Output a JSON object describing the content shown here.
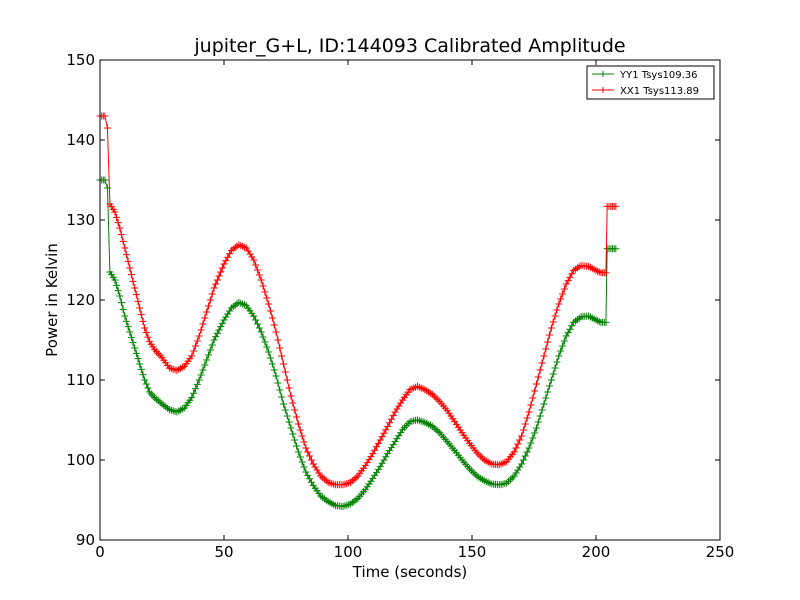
{
  "chart_data": {
    "type": "line",
    "title": "jupiter_G+L, ID:144093 Calibrated Amplitude",
    "xlabel": "Time (seconds)",
    "ylabel": "Power in Kelvin",
    "xlim": [
      0,
      250
    ],
    "ylim": [
      90,
      150
    ],
    "xticks": [
      "0",
      "50",
      "100",
      "150",
      "200",
      "250"
    ],
    "yticks": [
      "90",
      "100",
      "110",
      "120",
      "130",
      "140",
      "150"
    ],
    "grid": false,
    "legend_position": "top-right",
    "marker": "+",
    "series": [
      {
        "name": "YY1 Tsys109.36",
        "color": "#008000",
        "points": [
          [
            0,
            135
          ],
          [
            2,
            135
          ],
          [
            3,
            134
          ],
          [
            4,
            123.5
          ],
          [
            6,
            122.5
          ],
          [
            8,
            120.5
          ],
          [
            10,
            118
          ],
          [
            12,
            116
          ],
          [
            14,
            114
          ],
          [
            16,
            112
          ],
          [
            18,
            110
          ],
          [
            20,
            108.5
          ],
          [
            22,
            107.8
          ],
          [
            25,
            107
          ],
          [
            28,
            106.3
          ],
          [
            31,
            106
          ],
          [
            34,
            106.5
          ],
          [
            37,
            107.8
          ],
          [
            40,
            110
          ],
          [
            43,
            112.5
          ],
          [
            46,
            115
          ],
          [
            50,
            117.5
          ],
          [
            53,
            119
          ],
          [
            56,
            119.7
          ],
          [
            59,
            119.3
          ],
          [
            62,
            118
          ],
          [
            65,
            116
          ],
          [
            68,
            113.5
          ],
          [
            71,
            110.5
          ],
          [
            74,
            107
          ],
          [
            77,
            104
          ],
          [
            80,
            101
          ],
          [
            83,
            98.5
          ],
          [
            86,
            96.8
          ],
          [
            89,
            95.5
          ],
          [
            92,
            94.8
          ],
          [
            95,
            94.3
          ],
          [
            98,
            94.2
          ],
          [
            101,
            94.5
          ],
          [
            104,
            95.2
          ],
          [
            107,
            96.3
          ],
          [
            110,
            97.7
          ],
          [
            113,
            99.2
          ],
          [
            116,
            100.8
          ],
          [
            119,
            102.3
          ],
          [
            122,
            103.8
          ],
          [
            125,
            104.8
          ],
          [
            128,
            105
          ],
          [
            131,
            104.7
          ],
          [
            134,
            104.2
          ],
          [
            137,
            103.4
          ],
          [
            140,
            102.3
          ],
          [
            143,
            101.2
          ],
          [
            146,
            100
          ],
          [
            149,
            98.9
          ],
          [
            152,
            98
          ],
          [
            155,
            97.4
          ],
          [
            158,
            97
          ],
          [
            161,
            96.9
          ],
          [
            164,
            97.1
          ],
          [
            167,
            98
          ],
          [
            170,
            99.5
          ],
          [
            173,
            101.5
          ],
          [
            176,
            104
          ],
          [
            179,
            107
          ],
          [
            182,
            110
          ],
          [
            185,
            113
          ],
          [
            188,
            115.5
          ],
          [
            191,
            117.2
          ],
          [
            194,
            117.9
          ],
          [
            197,
            118
          ],
          [
            200,
            117.5
          ],
          [
            202,
            117.2
          ],
          [
            204,
            117.2
          ],
          [
            204.5,
            126.4
          ],
          [
            206,
            126.4
          ],
          [
            208,
            126.4
          ]
        ]
      },
      {
        "name": "XX1 Tsys113.89",
        "color": "#ff0000",
        "points": [
          [
            0,
            143
          ],
          [
            2,
            143
          ],
          [
            3,
            141.5
          ],
          [
            4,
            132
          ],
          [
            6,
            131
          ],
          [
            8,
            129
          ],
          [
            10,
            126.5
          ],
          [
            12,
            124
          ],
          [
            14,
            121.5
          ],
          [
            16,
            119
          ],
          [
            18,
            116.5
          ],
          [
            20,
            114.8
          ],
          [
            22,
            113.8
          ],
          [
            25,
            112.8
          ],
          [
            28,
            111.5
          ],
          [
            31,
            111.2
          ],
          [
            34,
            111.7
          ],
          [
            37,
            113
          ],
          [
            40,
            115.5
          ],
          [
            43,
            118.5
          ],
          [
            46,
            121.5
          ],
          [
            50,
            124.5
          ],
          [
            53,
            126.2
          ],
          [
            56,
            126.9
          ],
          [
            59,
            126.5
          ],
          [
            62,
            125
          ],
          [
            65,
            122.5
          ],
          [
            68,
            119.5
          ],
          [
            71,
            116
          ],
          [
            74,
            112
          ],
          [
            77,
            108
          ],
          [
            80,
            104.5
          ],
          [
            83,
            101.5
          ],
          [
            86,
            99.5
          ],
          [
            89,
            98
          ],
          [
            92,
            97.2
          ],
          [
            95,
            96.9
          ],
          [
            98,
            96.9
          ],
          [
            101,
            97.2
          ],
          [
            104,
            98
          ],
          [
            107,
            99.3
          ],
          [
            110,
            100.8
          ],
          [
            113,
            102.5
          ],
          [
            116,
            104.2
          ],
          [
            119,
            106
          ],
          [
            122,
            107.5
          ],
          [
            125,
            108.8
          ],
          [
            128,
            109.2
          ],
          [
            131,
            108.8
          ],
          [
            134,
            108.2
          ],
          [
            137,
            107.3
          ],
          [
            140,
            106.2
          ],
          [
            143,
            104.8
          ],
          [
            146,
            103.4
          ],
          [
            149,
            102.1
          ],
          [
            152,
            100.9
          ],
          [
            155,
            100
          ],
          [
            158,
            99.5
          ],
          [
            161,
            99.4
          ],
          [
            164,
            99.8
          ],
          [
            167,
            101
          ],
          [
            170,
            103
          ],
          [
            173,
            106
          ],
          [
            176,
            109.5
          ],
          [
            179,
            113
          ],
          [
            182,
            116.5
          ],
          [
            185,
            119.5
          ],
          [
            188,
            122
          ],
          [
            191,
            123.7
          ],
          [
            194,
            124.3
          ],
          [
            197,
            124.2
          ],
          [
            200,
            123.7
          ],
          [
            202,
            123.4
          ],
          [
            204,
            123.4
          ],
          [
            204.5,
            131.7
          ],
          [
            206,
            131.7
          ],
          [
            208,
            131.7
          ]
        ]
      }
    ]
  }
}
